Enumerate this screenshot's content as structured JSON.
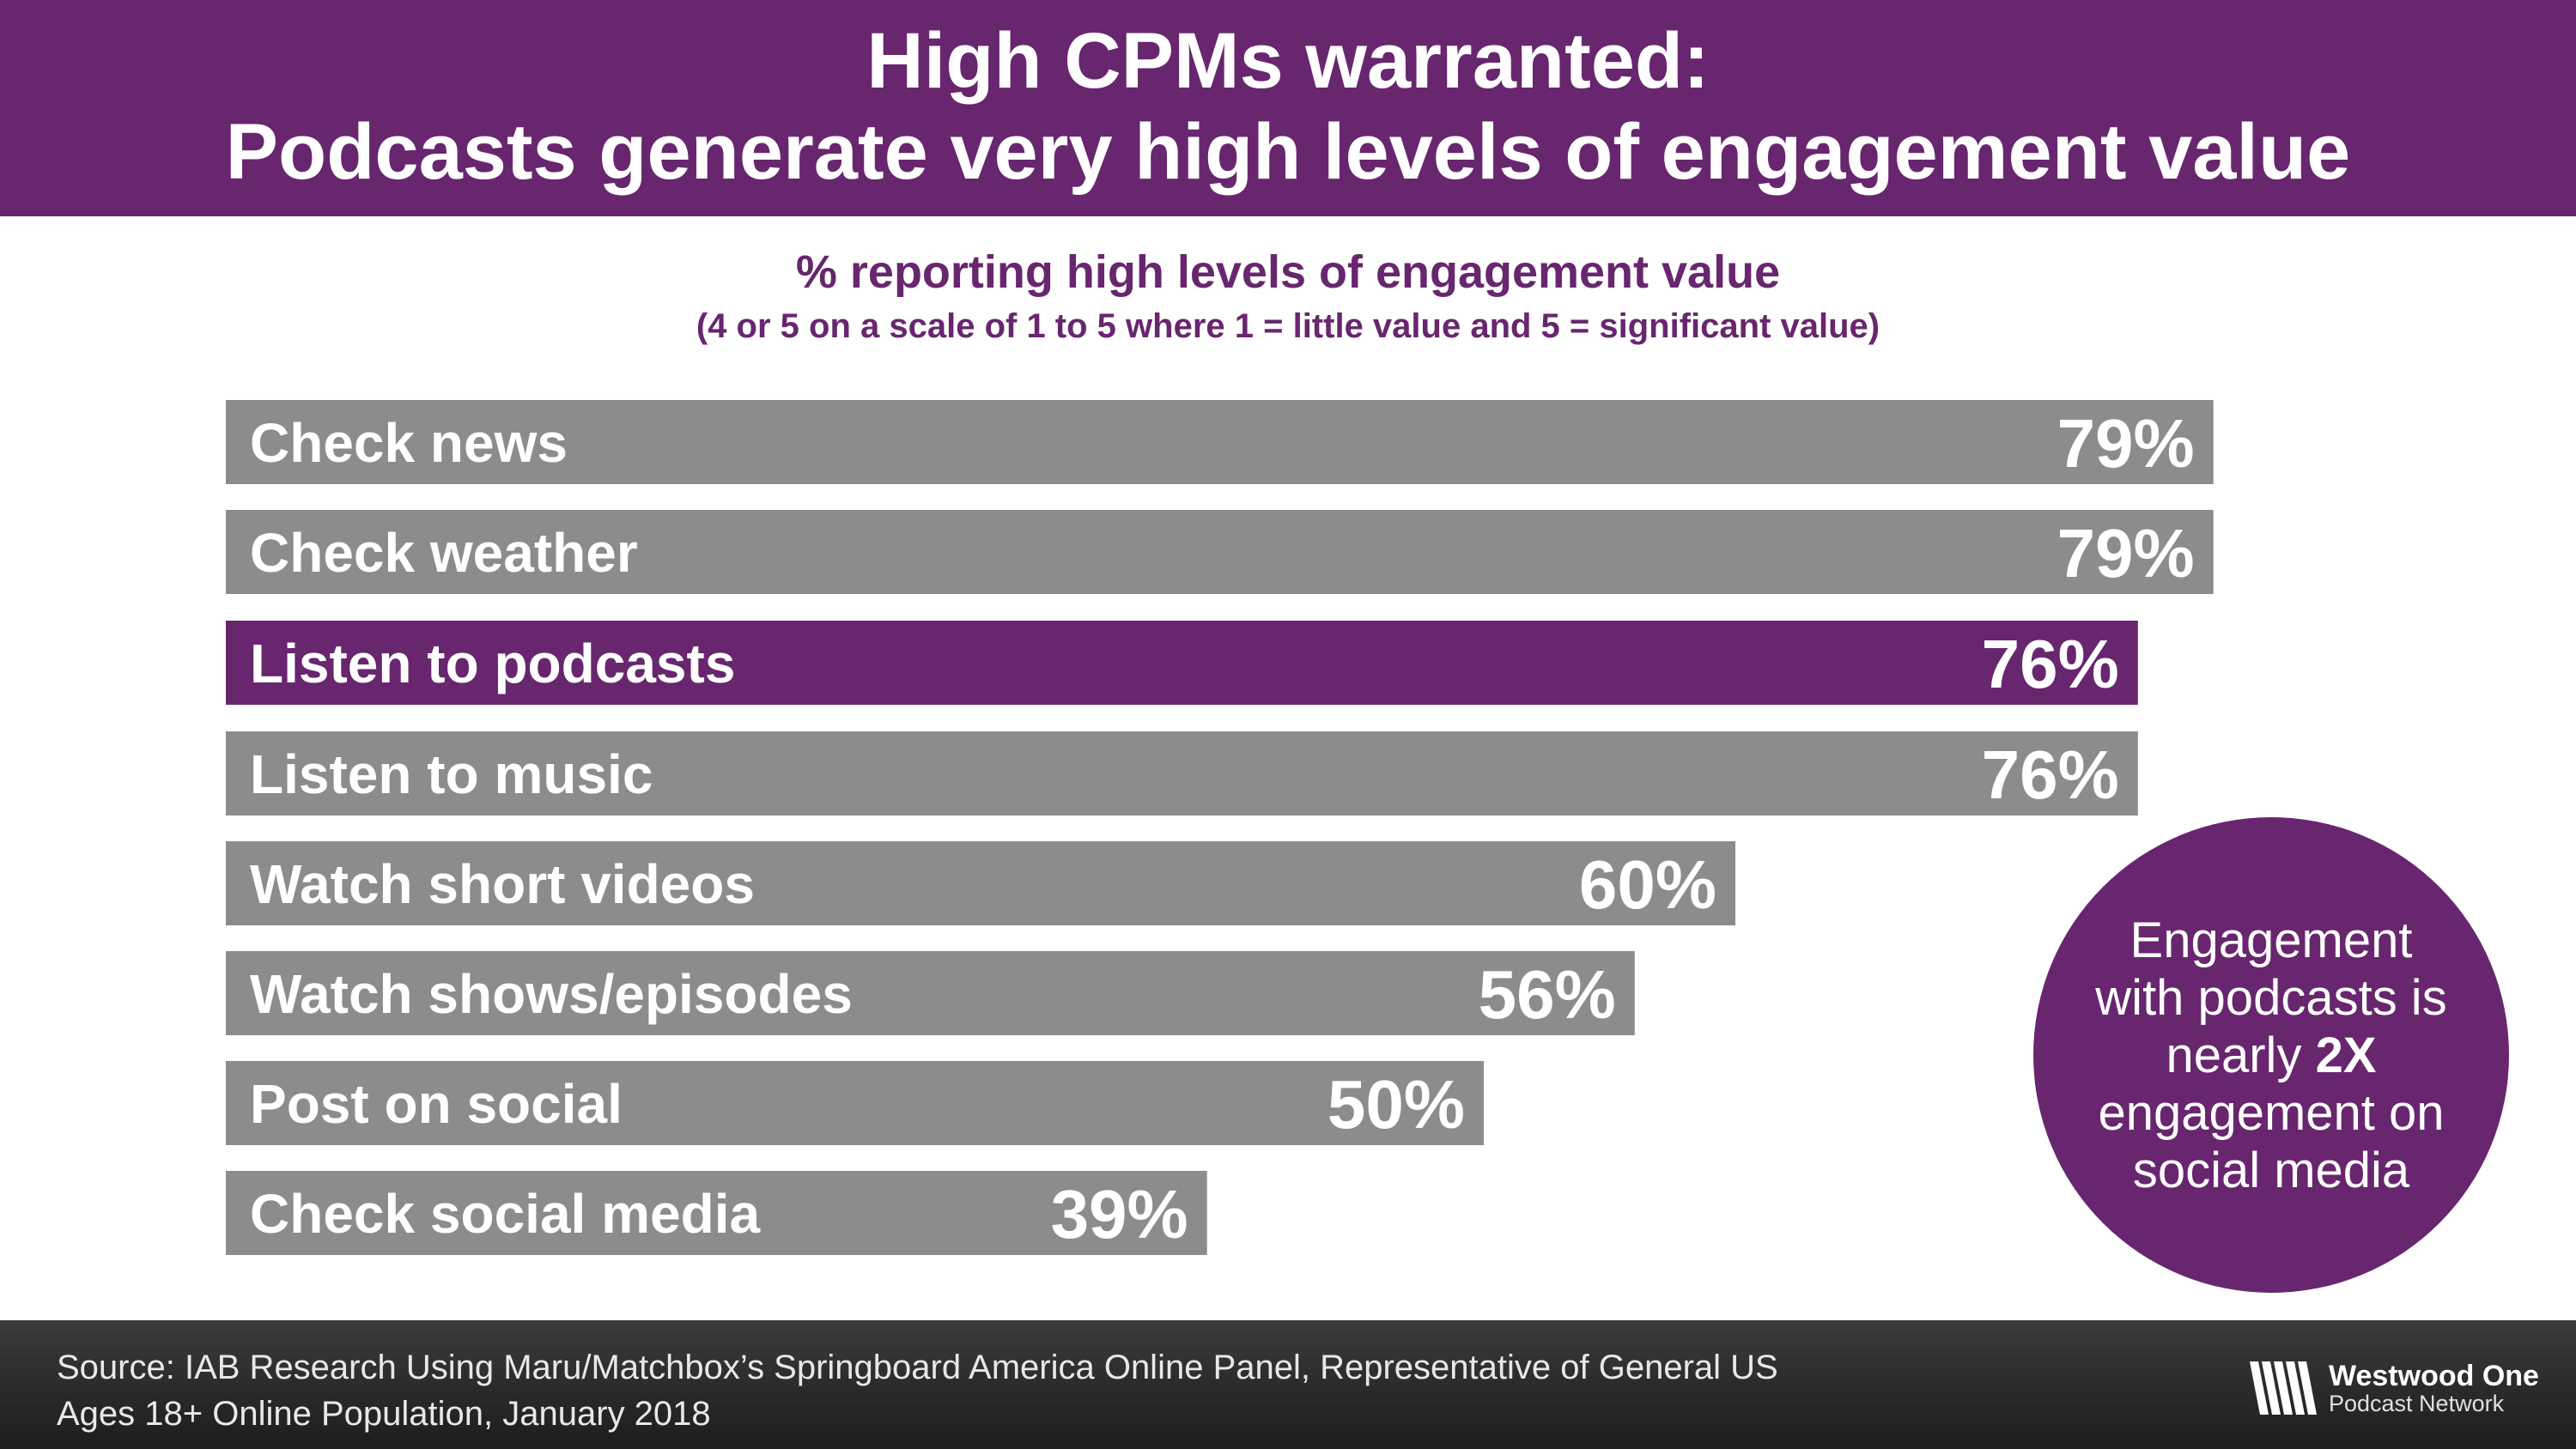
{
  "header": {
    "title_line1": "High CPMs warranted:",
    "title_line2": "Podcasts generate very high levels of engagement value"
  },
  "chart_data": {
    "type": "bar",
    "orientation": "horizontal",
    "title": "% reporting high levels of engagement value",
    "subtitle": "(4 or 5 on a scale of 1 to 5 where 1 = little value and 5 = significant value)",
    "categories": [
      "Check news",
      "Check weather",
      "Listen to podcasts",
      "Listen to music",
      "Watch short videos",
      "Watch shows/episodes",
      "Post on social",
      "Check social media"
    ],
    "values": [
      79,
      79,
      76,
      76,
      60,
      56,
      50,
      39
    ],
    "value_labels": [
      "79%",
      "79%",
      "76%",
      "76%",
      "60%",
      "56%",
      "50%",
      "39%"
    ],
    "highlight_index": 2,
    "unit": "%",
    "colors": {
      "default": "#8c8c8c",
      "highlight": "#68266f"
    }
  },
  "callout": {
    "text_before": "Engagement with podcasts is nearly",
    "emphasis": "2X",
    "text_after": "engagement on social media"
  },
  "footer": {
    "source_line1": "Source: IAB Research Using Maru/Matchbox’s Springboard America Online Panel, Representative of General US",
    "source_line2": "Ages 18+ Online Population, January 2018"
  },
  "logo": {
    "name": "Westwood One",
    "tagline": "Podcast Network"
  },
  "colors": {
    "brand_purple": "#68266f",
    "bar_gray": "#8c8c8c"
  }
}
